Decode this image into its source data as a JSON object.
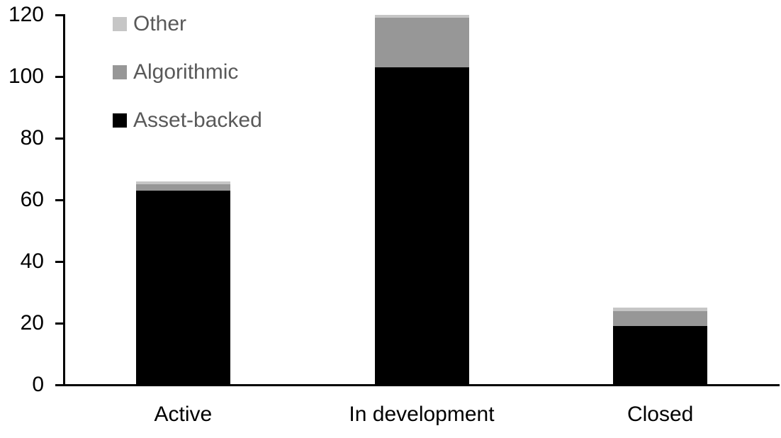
{
  "chart_data": {
    "type": "bar",
    "stacked": true,
    "title": "",
    "xlabel": "",
    "ylabel": "",
    "categories": [
      "Active",
      "In development",
      "Closed"
    ],
    "series": [
      {
        "name": "Asset-backed",
        "color": "#000000",
        "values": [
          63,
          103,
          19
        ]
      },
      {
        "name": "Algorithmic",
        "color": "#979797",
        "values": [
          2,
          16,
          5
        ]
      },
      {
        "name": "Other",
        "color": "#c6c6c6",
        "values": [
          1,
          1,
          1
        ]
      }
    ],
    "stack_totals": [
      66,
      120,
      25
    ],
    "y_ticks": [
      0,
      20,
      40,
      60,
      80,
      100,
      120
    ],
    "ylim": [
      0,
      120
    ],
    "grid": false,
    "legend_position": "inside-top-left",
    "legend_order": [
      "Other",
      "Algorithmic",
      "Asset-backed"
    ],
    "axis_color": "#000000",
    "tick_label_color": "#000000",
    "legend_text_color": "#595959",
    "background_color": "#ffffff"
  }
}
